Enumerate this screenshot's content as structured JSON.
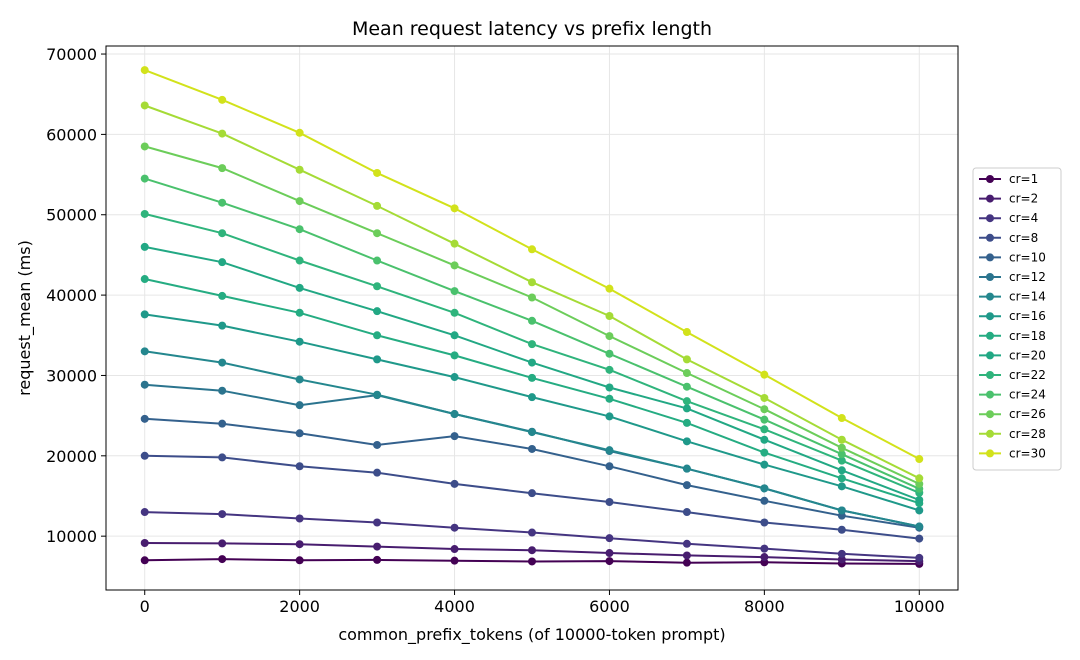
{
  "chart_data": {
    "type": "line",
    "title": "Mean request latency vs prefix length",
    "xlabel": "common_prefix_tokens (of 10000-token prompt)",
    "ylabel": "request_mean (ms)",
    "xlim": [
      -500,
      10500
    ],
    "ylim": [
      3300,
      71000
    ],
    "xticks": [
      0,
      2000,
      4000,
      6000,
      8000,
      10000
    ],
    "yticks": [
      10000,
      20000,
      30000,
      40000,
      50000,
      60000,
      70000
    ],
    "grid": true,
    "legend_position": "right",
    "x": [
      0,
      1000,
      2000,
      3000,
      4000,
      5000,
      6000,
      7000,
      8000,
      9000,
      10000
    ],
    "series": [
      {
        "name": "cr=1",
        "color": "#440154",
        "values": [
          7000,
          7150,
          7000,
          7050,
          6950,
          6850,
          6900,
          6700,
          6750,
          6600,
          6550
        ]
      },
      {
        "name": "cr=2",
        "color": "#481d6f",
        "values": [
          9150,
          9100,
          9000,
          8700,
          8400,
          8250,
          7900,
          7600,
          7400,
          7100,
          6900
        ]
      },
      {
        "name": "cr=4",
        "color": "#453581",
        "values": [
          13000,
          12750,
          12200,
          11700,
          11050,
          10450,
          9750,
          9050,
          8450,
          7800,
          7300
        ]
      },
      {
        "name": "cr=8",
        "color": "#3d4d8a",
        "values": [
          20000,
          19800,
          18700,
          17900,
          16500,
          15350,
          14250,
          13000,
          11700,
          10800,
          9700
        ]
      },
      {
        "name": "cr=10",
        "color": "#34618d",
        "values": [
          24600,
          24000,
          22800,
          21350,
          22450,
          20850,
          18700,
          16350,
          14400,
          12550,
          11050
        ]
      },
      {
        "name": "cr=12",
        "color": "#2b748e",
        "values": [
          28850,
          28100,
          26300,
          27550,
          25200,
          23000,
          20600,
          18400,
          15950,
          13200,
          11200
        ]
      },
      {
        "name": "cr=14",
        "color": "#24878e",
        "values": [
          33000,
          31600,
          29500,
          27600,
          25200,
          22950,
          20700,
          18400,
          15950,
          13200,
          11200
        ]
      },
      {
        "name": "cr=16",
        "color": "#1f998a",
        "values": [
          37600,
          36200,
          34200,
          32000,
          29800,
          27300,
          24900,
          21800,
          18900,
          16200,
          13200
        ]
      },
      {
        "name": "cr=18",
        "color": "#25ac82",
        "values": [
          42000,
          39900,
          37800,
          35000,
          32500,
          29700,
          27100,
          24100,
          20400,
          17200,
          14100
        ]
      },
      {
        "name": "cr=20",
        "color": "#22a884",
        "values": [
          46000,
          44100,
          40900,
          38000,
          35000,
          31600,
          28500,
          25900,
          22000,
          18200,
          14500
        ]
      },
      {
        "name": "cr=22",
        "color": "#2fb47c",
        "values": [
          50100,
          47700,
          44300,
          41100,
          37800,
          33900,
          30700,
          26800,
          23300,
          19400,
          15400
        ]
      },
      {
        "name": "cr=24",
        "color": "#4ac16d",
        "values": [
          54500,
          51500,
          48200,
          44300,
          40500,
          36800,
          32700,
          28600,
          24500,
          20200,
          15900
        ]
      },
      {
        "name": "cr=26",
        "color": "#6ccd5a",
        "values": [
          58500,
          55800,
          51700,
          47700,
          43700,
          39700,
          34900,
          30300,
          25800,
          21000,
          16500
        ]
      },
      {
        "name": "cr=28",
        "color": "#a5db36",
        "values": [
          63600,
          60100,
          55600,
          51100,
          46400,
          41600,
          37400,
          32000,
          27200,
          22000,
          17200
        ]
      },
      {
        "name": "cr=30",
        "color": "#d2e21b",
        "values": [
          68000,
          64300,
          60200,
          55200,
          50800,
          45700,
          40800,
          35400,
          30100,
          24700,
          19600
        ]
      }
    ]
  }
}
